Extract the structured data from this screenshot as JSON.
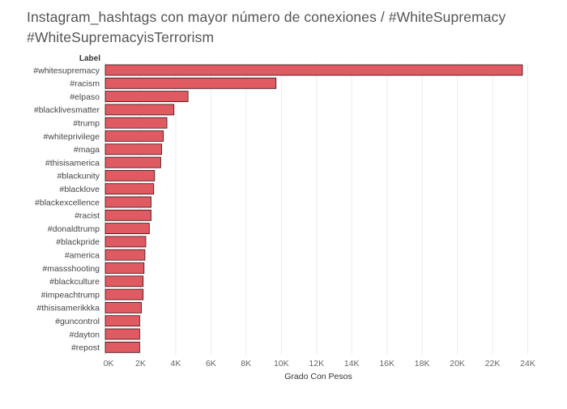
{
  "title_lines": [
    "Instagram_hashtags con mayor número de conexiones  / #WhiteSupremacy",
    "#WhiteSupremacyisTerrorism"
  ],
  "colors": {
    "bar_fill": "#e05a62",
    "bar_stroke": "#3a1014",
    "grid": "#ececec",
    "baseline": "#cccccc"
  },
  "chart_data": {
    "type": "bar",
    "orientation": "horizontal",
    "title": "Instagram_hashtags con mayor número de conexiones  / #WhiteSupremacy #WhiteSupremacyisTerrorism",
    "ylabel": "Label",
    "xlabel": "Grado Con Pesos",
    "categories": [
      "#whitesupremacy",
      "#racism",
      "#elpaso",
      "#blacklivesmatter",
      "#trump",
      "#whiteprivilege",
      "#maga",
      "#thisisamerica",
      "#blackunity",
      "#blacklove",
      "#blackexcellence",
      "#racist",
      "#donaldtrump",
      "#blackpride",
      "#america",
      "#massshooting",
      "#blackculture",
      "#impeachtrump",
      "#thisisamerikkka",
      "#guncontrol",
      "#dayton",
      "#repost"
    ],
    "values": [
      23700,
      9700,
      4700,
      3900,
      3500,
      3300,
      3200,
      3150,
      2800,
      2750,
      2600,
      2600,
      2500,
      2300,
      2250,
      2200,
      2150,
      2150,
      2050,
      1950,
      1950,
      1950
    ],
    "xlim": [
      0,
      24000
    ],
    "xticks": [
      0,
      2000,
      4000,
      6000,
      8000,
      10000,
      12000,
      14000,
      16000,
      18000,
      20000,
      22000,
      24000
    ],
    "xtick_labels": [
      "0K",
      "2K",
      "4K",
      "6K",
      "8K",
      "10K",
      "12K",
      "14K",
      "16K",
      "18K",
      "20K",
      "22K",
      "24K"
    ],
    "grid": true
  }
}
